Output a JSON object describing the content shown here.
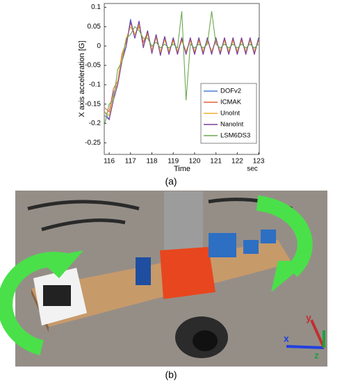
{
  "chart_data": {
    "type": "line",
    "xlabel": "Time",
    "xunit": "sec",
    "ylabel": "X axis acceleration [G]",
    "x": [
      115.8,
      116,
      116.2,
      116.4,
      116.6,
      116.8,
      117,
      117.2,
      117.4,
      117.6,
      117.8,
      118,
      118.2,
      118.4,
      118.6,
      118.8,
      119,
      119.2,
      119.4,
      119.6,
      119.8,
      120,
      120.2,
      120.4,
      120.6,
      120.8,
      121,
      121.2,
      121.4,
      121.6,
      121.8,
      122,
      122.2,
      122.4,
      122.6,
      122.8,
      123
    ],
    "series": [
      {
        "name": "DOFv2",
        "color": "#4f7fd0",
        "values": [
          -0.17,
          -0.19,
          -0.12,
          -0.1,
          -0.03,
          0,
          0.07,
          0.02,
          0.06,
          0,
          0.04,
          -0.015,
          0.03,
          -0.02,
          0.025,
          -0.02,
          0.02,
          -0.02,
          0.02,
          -0.02,
          0.02,
          -0.02,
          0.02,
          -0.02,
          0.02,
          -0.02,
          0.02,
          -0.02,
          0.02,
          -0.02,
          0.02,
          -0.02,
          0.02,
          -0.02,
          0.02,
          -0.02,
          0.02
        ]
      },
      {
        "name": "ICMAK",
        "color": "#e0603a",
        "values": [
          -0.16,
          -0.17,
          -0.11,
          -0.09,
          -0.02,
          0.01,
          0.06,
          0.03,
          0.05,
          0.01,
          0.035,
          -0.01,
          0.025,
          -0.015,
          0.02,
          -0.015,
          0.015,
          -0.015,
          0.015,
          -0.015,
          0.015,
          -0.015,
          0.015,
          -0.015,
          0.015,
          -0.015,
          0.015,
          -0.015,
          0.015,
          -0.015,
          0.015,
          -0.015,
          0.015,
          -0.015,
          0.015,
          -0.015,
          0.015
        ]
      },
      {
        "name": "UnoInt",
        "color": "#f0b030",
        "values": [
          -0.17,
          -0.18,
          -0.13,
          -0.09,
          -0.03,
          0.02,
          0.05,
          0.03,
          0.055,
          0,
          0.03,
          -0.01,
          0.02,
          -0.015,
          0.015,
          -0.012,
          0.012,
          -0.012,
          0.012,
          -0.012,
          0.012,
          -0.012,
          0.012,
          -0.012,
          0.012,
          -0.012,
          0.012,
          -0.012,
          0.012,
          -0.012,
          0.012,
          -0.012,
          0.012,
          -0.012,
          0.012,
          -0.012,
          0.012
        ]
      },
      {
        "name": "NanoInt",
        "color": "#7b3f9e",
        "values": [
          -0.18,
          -0.19,
          -0.14,
          -0.1,
          -0.04,
          0,
          0.065,
          0.02,
          0.065,
          -0.005,
          0.04,
          -0.02,
          0.03,
          -0.025,
          0.025,
          -0.022,
          0.022,
          -0.022,
          0.022,
          -0.022,
          0.022,
          -0.022,
          0.022,
          -0.022,
          0.022,
          -0.022,
          0.022,
          -0.022,
          0.022,
          -0.022,
          0.022,
          -0.022,
          0.022,
          -0.022,
          0.022,
          -0.022,
          0.022
        ]
      },
      {
        "name": "LSM6DS3",
        "color": "#6aa84f",
        "values": [
          -0.2,
          -0.15,
          -0.14,
          -0.06,
          -0.04,
          0.02,
          0.03,
          0.05,
          0.04,
          0.02,
          0.02,
          0,
          0.01,
          -0.005,
          0.005,
          -0.005,
          0.005,
          -0.005,
          0.09,
          -0.14,
          0.005,
          -0.005,
          0.005,
          -0.005,
          0.005,
          0.09,
          0.005,
          -0.005,
          0.005,
          -0.005,
          0.005,
          -0.005,
          0.005,
          -0.005,
          0.005,
          -0.005,
          0.005
        ]
      }
    ],
    "xlim": [
      115.77,
      123.03
    ],
    "ylim": [
      -0.28,
      0.11
    ],
    "xticks": [
      116,
      117,
      118,
      119,
      120,
      121,
      122,
      123
    ],
    "yticks": [
      0.1,
      0.05,
      0,
      -0.05,
      -0.1,
      -0.15,
      -0.2,
      -0.25
    ],
    "legend": "lower right"
  },
  "figure": {
    "caption_a": "(a)",
    "caption_b": "(b)",
    "photo_axes": [
      "x",
      "y",
      "z"
    ]
  }
}
